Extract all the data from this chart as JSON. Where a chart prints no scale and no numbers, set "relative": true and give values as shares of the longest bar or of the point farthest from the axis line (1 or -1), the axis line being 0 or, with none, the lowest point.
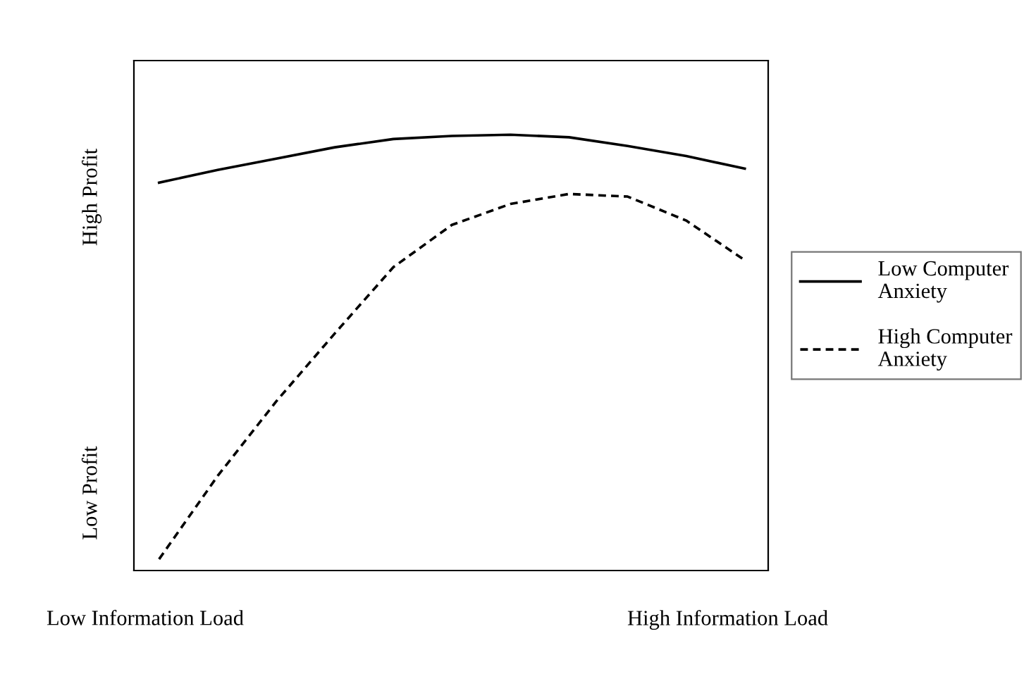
{
  "chart_data": {
    "type": "line",
    "relative": true,
    "categories": [
      null,
      null,
      null,
      null,
      null,
      null,
      null,
      null,
      null,
      null,
      null
    ],
    "series": [
      {
        "name": "Low Computer\nAnxiety",
        "color": "#000000",
        "line_style": "solid",
        "values": [
          0.89,
          0.919,
          0.945,
          0.971,
          0.99,
          0.997,
          1,
          0.994,
          0.974,
          0.951,
          0.922
        ]
      },
      {
        "name": "High Computer\nAnxiety",
        "color": "#000000",
        "line_style": "dashed",
        "values": [
          0.026,
          0.217,
          0.388,
          0.544,
          0.696,
          0.793,
          0.841,
          0.864,
          0.858,
          0.803,
          0.712
        ]
      }
    ],
    "annotations": [
      "High Profit",
      "Low Profit",
      "Low Information Load",
      "High Information Load"
    ],
    "legend": "right",
    "grid": false,
    "marker": "none"
  }
}
